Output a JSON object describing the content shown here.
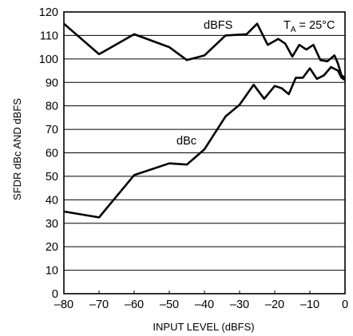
{
  "chart_data": {
    "type": "line",
    "title": "",
    "xlabel": "INPUT LEVEL (dBFS)",
    "ylabel": "SFDR dBc AND dBFS",
    "xlim": [
      -80,
      0
    ],
    "ylim": [
      0,
      120
    ],
    "x_ticks": [
      -80,
      -70,
      -60,
      -50,
      -40,
      -30,
      -20,
      -10,
      0
    ],
    "x_tick_labels": [
      "–80",
      "–70",
      "–60",
      "–50",
      "–40",
      "–30",
      "–20",
      "–10",
      "0"
    ],
    "y_ticks": [
      0,
      10,
      20,
      30,
      40,
      50,
      60,
      70,
      80,
      90,
      100,
      110,
      120
    ],
    "y_tick_labels": [
      "0",
      "10",
      "20",
      "30",
      "40",
      "50",
      "60",
      "70",
      "80",
      "90",
      "100",
      "110",
      "120"
    ],
    "grid": "horizontal",
    "condition": {
      "main": "T",
      "sub": "A",
      "rest": " = 25°C"
    },
    "series": [
      {
        "name": "dBFS",
        "x": [
          -80,
          -70,
          -60,
          -50,
          -45,
          -40,
          -34,
          -28,
          -25,
          -22,
          -19,
          -17,
          -15,
          -13,
          -11,
          -9,
          -7,
          -5,
          -3,
          -2,
          -1,
          0
        ],
        "y": [
          115,
          102,
          110.5,
          105,
          99.5,
          101.5,
          110,
          110.5,
          115,
          106,
          108.5,
          106.5,
          101,
          106,
          104,
          106,
          99.5,
          99,
          101.5,
          98,
          93,
          92
        ]
      },
      {
        "name": "dBc",
        "x": [
          -80,
          -70,
          -60,
          -50,
          -45,
          -40,
          -34,
          -30,
          -26,
          -23,
          -20,
          -18,
          -16,
          -14,
          -12,
          -10,
          -8,
          -6,
          -4,
          -2,
          -1,
          0
        ],
        "y": [
          35,
          32.5,
          50.5,
          55.5,
          55,
          61.5,
          75.5,
          80.5,
          89,
          83,
          88.5,
          87.5,
          85,
          92,
          92,
          96,
          91.5,
          93,
          96.5,
          95,
          92,
          91
        ]
      }
    ]
  }
}
